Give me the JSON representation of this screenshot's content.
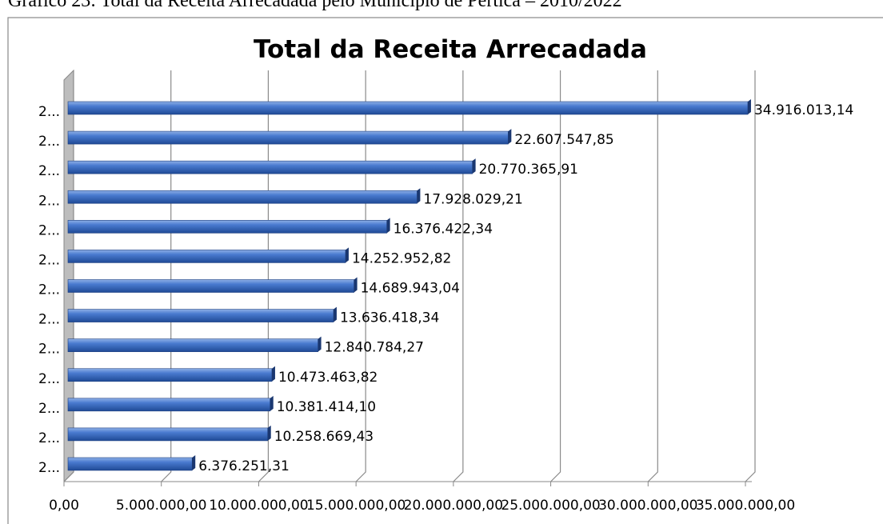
{
  "caption": "Gráfico 23: Total da Receita Arrecadada pelo Município de Pertica – 2010/2022",
  "chart_data": {
    "type": "bar",
    "orientation": "horizontal",
    "title": "Total da Receita Arrecadada",
    "categories": [
      "2...",
      "2...",
      "2...",
      "2...",
      "2...",
      "2...",
      "2...",
      "2...",
      "2...",
      "2...",
      "2...",
      "2...",
      "2..."
    ],
    "values": [
      34916013.14,
      22607547.85,
      20770365.91,
      17928029.21,
      16376422.34,
      14252952.82,
      14689943.04,
      13636418.34,
      12840784.27,
      10473463.82,
      10381414.1,
      10258669.43,
      6376251.31
    ],
    "value_labels": [
      "34.916.013,14",
      "22.607.547,85",
      "20.770.365,91",
      "17.928.029,21",
      "16.376.422,34",
      "14.252.952,82",
      "14.689.943,04",
      "13.636.418,34",
      "12.840.784,27",
      "10.473.463,82",
      "10.381.414,10",
      "10.258.669,43",
      "6.376.251,31"
    ],
    "color": "#3a6cc0",
    "xlim": [
      0,
      35000000
    ],
    "xticks": [
      {
        "value": 0,
        "label": "0,00"
      },
      {
        "value": 5000000,
        "label": "5.000.000,00"
      },
      {
        "value": 10000000,
        "label": "10.000.000,00"
      },
      {
        "value": 15000000,
        "label": "15.000.000,00"
      },
      {
        "value": 20000000,
        "label": "20.000.000,00"
      },
      {
        "value": 25000000,
        "label": "25.000.000,00"
      },
      {
        "value": 30000000,
        "label": "30.000.000,00"
      },
      {
        "value": 35000000,
        "label": "35.000.000,00"
      }
    ],
    "grid": true
  }
}
